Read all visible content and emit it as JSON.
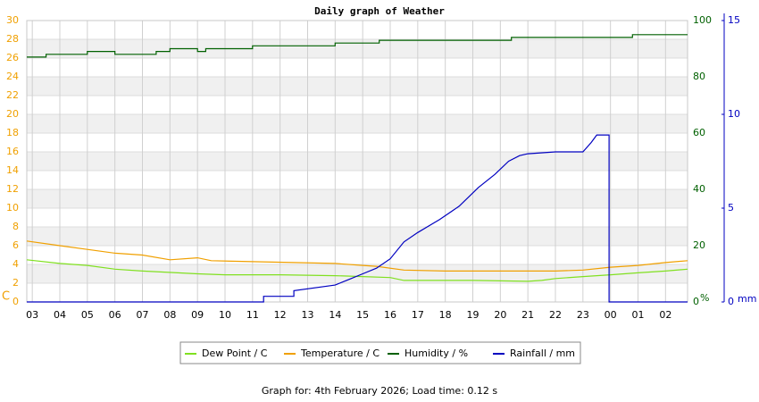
{
  "chart_data": {
    "type": "line",
    "title": "Daily graph of Weather",
    "xlim": [
      2.8,
      26.8
    ],
    "xticks": [
      {
        "value": 3,
        "label": "03"
      },
      {
        "value": 4,
        "label": "04"
      },
      {
        "value": 5,
        "label": "05"
      },
      {
        "value": 6,
        "label": "06"
      },
      {
        "value": 7,
        "label": "07"
      },
      {
        "value": 8,
        "label": "08"
      },
      {
        "value": 9,
        "label": "09"
      },
      10,
      11,
      12,
      13,
      14,
      15,
      16,
      17,
      18,
      19,
      20,
      21,
      22,
      23,
      {
        "value": 24,
        "label": "00"
      },
      {
        "value": 25,
        "label": "01"
      },
      {
        "value": 26,
        "label": "02"
      }
    ],
    "ylim": [
      0,
      30
    ],
    "yticks": [
      0,
      2,
      4,
      6,
      8,
      10,
      12,
      14,
      16,
      18,
      20,
      22,
      24,
      26,
      28,
      30
    ],
    "ylabel": "C",
    "ycolor": "#f0a000",
    "y2lim": [
      0,
      100
    ],
    "y2ticks": [
      0,
      20,
      40,
      60,
      80,
      100
    ],
    "y2label": "%",
    "y2color": "#006000",
    "y3lim": [
      0,
      15
    ],
    "y3ticks": [
      0,
      5,
      10,
      15
    ],
    "y3label": "mm",
    "y3color": "#0000c0",
    "grid": true,
    "series": [
      {
        "name": "Dew Point / C",
        "color": "#80e020",
        "axis": "y",
        "x": [
          2.8,
          4,
          5,
          6,
          7,
          9,
          10,
          12,
          14,
          15,
          16,
          16.5,
          19,
          21,
          21.5,
          22,
          23,
          24,
          25,
          26,
          26.8
        ],
        "values": [
          4.5,
          4.1,
          3.9,
          3.5,
          3.3,
          3.0,
          2.9,
          2.9,
          2.8,
          2.7,
          2.6,
          2.3,
          2.3,
          2.2,
          2.3,
          2.5,
          2.7,
          2.9,
          3.1,
          3.3,
          3.5
        ]
      },
      {
        "name": "Temperature / C",
        "color": "#f0a000",
        "axis": "y",
        "x": [
          2.8,
          4,
          5,
          6,
          7,
          8,
          9,
          9.5,
          11,
          14,
          15,
          15.5,
          16.5,
          18,
          20,
          22,
          23,
          24,
          25,
          26,
          26.8
        ],
        "values": [
          6.5,
          6.0,
          5.6,
          5.2,
          5.0,
          4.5,
          4.7,
          4.4,
          4.3,
          4.1,
          3.9,
          3.8,
          3.4,
          3.3,
          3.3,
          3.3,
          3.4,
          3.7,
          3.9,
          4.2,
          4.4
        ]
      },
      {
        "name": "Humidity / %",
        "color": "#006000",
        "axis": "y2",
        "x": [
          2.8,
          3.5,
          3.5,
          5,
          5,
          6,
          6,
          7.5,
          7.5,
          8,
          8,
          9,
          9,
          9.3,
          9.3,
          11,
          11,
          14,
          14,
          15.6,
          15.6,
          20.4,
          20.4,
          24.8,
          24.8,
          26.8
        ],
        "values": [
          87,
          87,
          88,
          88,
          89,
          89,
          88,
          88,
          89,
          89,
          90,
          90,
          89,
          89,
          90,
          90,
          91,
          91,
          92,
          92,
          93,
          93,
          94,
          94,
          95,
          95
        ]
      },
      {
        "name": "Rainfall / mm",
        "color": "#0000c0",
        "axis": "y3",
        "x": [
          2.8,
          11.4,
          11.4,
          12.5,
          12.5,
          14,
          14.5,
          15,
          15.5,
          16,
          16.5,
          17,
          17.8,
          18.5,
          19.2,
          19.8,
          20.3,
          20.7,
          21,
          22,
          23,
          23.3,
          23.5,
          23.95,
          23.95,
          26.8
        ],
        "values": [
          0,
          0,
          0.3,
          0.3,
          0.6,
          0.9,
          1.2,
          1.5,
          1.8,
          2.3,
          3.2,
          3.7,
          4.4,
          5.1,
          6.1,
          6.8,
          7.5,
          7.8,
          7.9,
          8.0,
          8.0,
          8.5,
          8.9,
          8.9,
          0,
          0
        ]
      }
    ]
  },
  "footer": "Graph for: 4th February 2026; Load time: 0.12 s"
}
